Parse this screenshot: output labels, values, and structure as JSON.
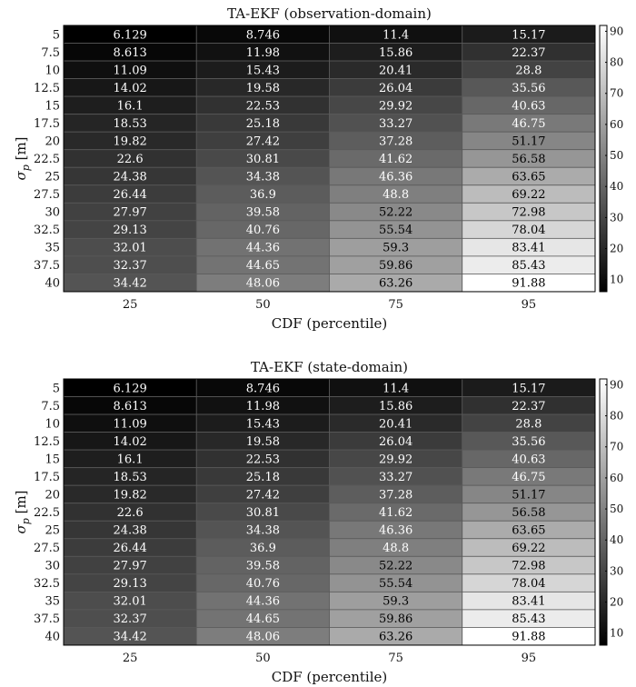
{
  "chart_data": [
    {
      "type": "heatmap",
      "title": "TA-EKF (observation-domain)",
      "xlabel": "CDF (percentile)",
      "ylabel": "σ_p [m]",
      "x_categories": [
        "25",
        "50",
        "75",
        "95"
      ],
      "y_categories": [
        "5",
        "7.5",
        "10",
        "12.5",
        "15",
        "17.5",
        "20",
        "22.5",
        "25",
        "27.5",
        "30",
        "32.5",
        "35",
        "37.5",
        "40"
      ],
      "values": [
        [
          6.129,
          8.746,
          11.4,
          15.17
        ],
        [
          8.613,
          11.98,
          15.86,
          22.37
        ],
        [
          11.09,
          15.43,
          20.41,
          28.8
        ],
        [
          14.02,
          19.58,
          26.04,
          35.56
        ],
        [
          16.1,
          22.53,
          29.92,
          40.63
        ],
        [
          18.53,
          25.18,
          33.27,
          46.75
        ],
        [
          19.82,
          27.42,
          37.28,
          51.17
        ],
        [
          22.6,
          30.81,
          41.62,
          56.58
        ],
        [
          24.38,
          34.38,
          46.36,
          63.65
        ],
        [
          26.44,
          36.9,
          48.8,
          69.22
        ],
        [
          27.97,
          39.58,
          52.22,
          72.98
        ],
        [
          29.13,
          40.76,
          55.54,
          78.04
        ],
        [
          32.01,
          44.36,
          59.3,
          83.41
        ],
        [
          32.37,
          44.65,
          59.86,
          85.43
        ],
        [
          34.42,
          48.06,
          63.26,
          91.88
        ]
      ],
      "colorbar": {
        "ticks": [
          10,
          20,
          30,
          40,
          50,
          60,
          70,
          80,
          90
        ],
        "range": [
          6.129,
          91.88
        ]
      },
      "colormap": [
        "#000000",
        "#ffffff"
      ]
    },
    {
      "type": "heatmap",
      "title": "TA-EKF (state-domain)",
      "xlabel": "CDF (percentile)",
      "ylabel": "σ_p [m]",
      "x_categories": [
        "25",
        "50",
        "75",
        "95"
      ],
      "y_categories": [
        "5",
        "7.5",
        "10",
        "12.5",
        "15",
        "17.5",
        "20",
        "22.5",
        "25",
        "27.5",
        "30",
        "32.5",
        "35",
        "37.5",
        "40"
      ],
      "values": [
        [
          6.129,
          8.746,
          11.4,
          15.17
        ],
        [
          8.613,
          11.98,
          15.86,
          22.37
        ],
        [
          11.09,
          15.43,
          20.41,
          28.8
        ],
        [
          14.02,
          19.58,
          26.04,
          35.56
        ],
        [
          16.1,
          22.53,
          29.92,
          40.63
        ],
        [
          18.53,
          25.18,
          33.27,
          46.75
        ],
        [
          19.82,
          27.42,
          37.28,
          51.17
        ],
        [
          22.6,
          30.81,
          41.62,
          56.58
        ],
        [
          24.38,
          34.38,
          46.36,
          63.65
        ],
        [
          26.44,
          36.9,
          48.8,
          69.22
        ],
        [
          27.97,
          39.58,
          52.22,
          72.98
        ],
        [
          29.13,
          40.76,
          55.54,
          78.04
        ],
        [
          32.01,
          44.36,
          59.3,
          83.41
        ],
        [
          32.37,
          44.65,
          59.86,
          85.43
        ],
        [
          34.42,
          48.06,
          63.26,
          91.88
        ]
      ],
      "colorbar": {
        "ticks": [
          10,
          20,
          30,
          40,
          50,
          60,
          70,
          80,
          90
        ],
        "range": [
          6.129,
          91.88
        ]
      },
      "colormap": [
        "#000000",
        "#ffffff"
      ]
    }
  ]
}
